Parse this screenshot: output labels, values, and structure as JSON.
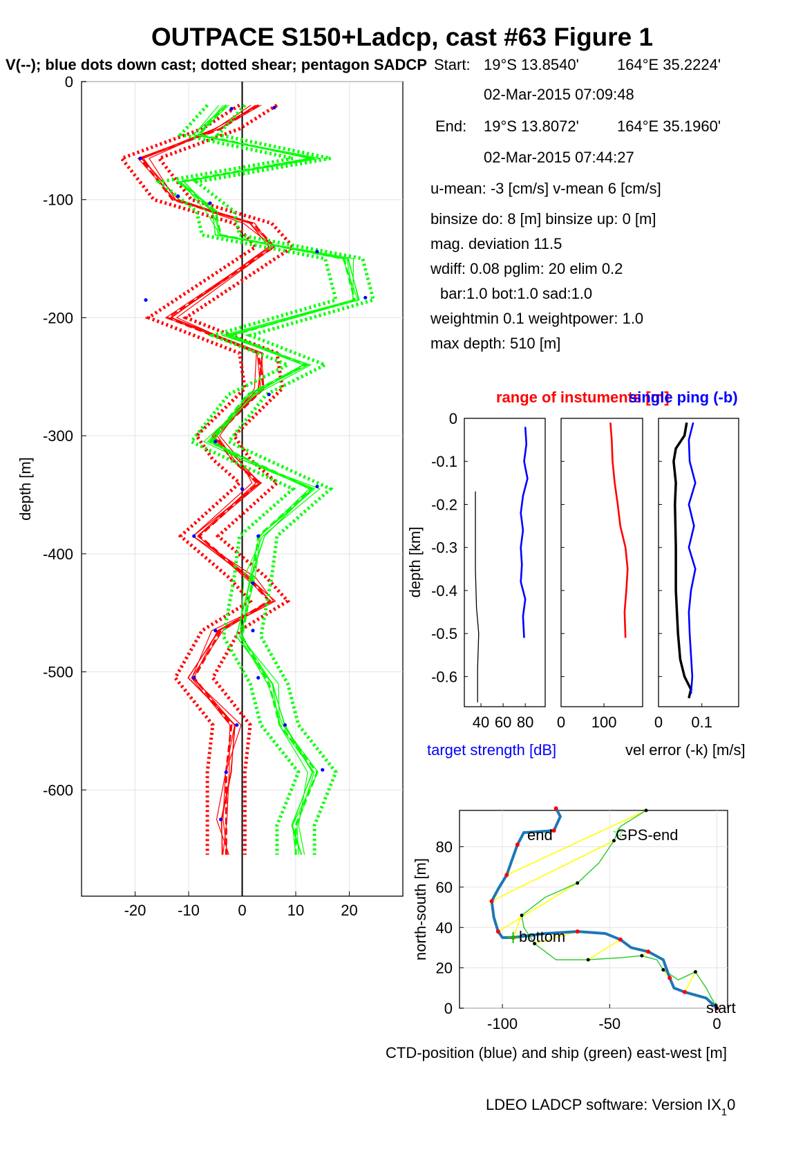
{
  "figure": {
    "title": "OUTPACE S150+Ladcp, cast #63  Figure 1",
    "subtitle": "V(--); blue dots down cast; dotted shear; pentagon SADCP",
    "footer": "LDEO LADCP software: Version IX",
    "footer_sub": "1",
    "footer_tail": "0"
  },
  "info": {
    "start_label": "Start:",
    "start_lat": "19°S 13.8540'",
    "start_lon": "164°E 35.2224'",
    "start_time": "02-Mar-2015 07:09:48",
    "end_label": "End:",
    "end_lat": "19°S 13.8072'",
    "end_lon": "164°E 35.1960'",
    "end_time": "02-Mar-2015 07:44:27",
    "line1": "u-mean:  -3 [cm/s]    v-mean   6 [cm/s]",
    "line2": "binsize do: 8 [m]  binsize up:  0 [m]",
    "line3": "mag. deviation 11.5",
    "line4": "wdiff: 0.08  pglim: 20  elim 0.2",
    "line5": "bar:1.0 bot:1.0 sad:1.0",
    "line6": "weightmin 0.1  weightpower: 1.0",
    "line7": "max depth: 510 [m]"
  },
  "mid": {
    "title_red": "range of instuments [m]",
    "title_blue": "single ping (-b)",
    "ylabel": "depth [km]",
    "xlabel_left": "target strength [dB]",
    "xlabel_right": "vel error (-k) [m/s]",
    "colors": {
      "red": "#ff0000",
      "blue": "#0000ff",
      "black": "#000000"
    }
  },
  "colors": {
    "u": "#ff0000",
    "v": "#00ff00",
    "dots": "#0000ff",
    "ctd": "#1f77b4",
    "ship": "#33cc33",
    "links": "#ffff00"
  },
  "chart_data": [
    {
      "type": "line",
      "name": "velocity_profiles",
      "ylabel": "depth [m]",
      "xlim": [
        -30,
        30
      ],
      "ylim": [
        -690,
        0
      ],
      "xticks": [
        -20,
        -10,
        0,
        10,
        20
      ],
      "yticks": [
        0,
        -100,
        -200,
        -300,
        -400,
        -500,
        -600
      ],
      "grid": true,
      "series": [
        {
          "component": "u",
          "color": "#ff0000",
          "depth": [
            -20,
            -40,
            -65,
            -100,
            -120,
            -140,
            -200,
            -230,
            -260,
            -300,
            -320,
            -340,
            -385,
            -420,
            -440,
            -465,
            -505,
            -545,
            -585,
            -625,
            -655
          ],
          "values": [
            3,
            -4,
            -19,
            -13,
            2,
            6,
            -14,
            3,
            4,
            -5,
            -2,
            3,
            -8,
            1,
            5,
            -4,
            -9,
            -2,
            -3,
            -3,
            -3
          ]
        },
        {
          "component": "v",
          "color": "#00ff00",
          "depth": [
            -20,
            -45,
            -65,
            -85,
            -110,
            -130,
            -150,
            -185,
            -215,
            -240,
            -265,
            -305,
            -320,
            -345,
            -385,
            -420,
            -470,
            -510,
            -545,
            -585,
            -630,
            -655
          ],
          "values": [
            -3,
            -8,
            13,
            -12,
            -5,
            -4,
            19,
            21,
            -2,
            12,
            1,
            -6,
            1,
            13,
            3,
            2,
            0,
            5,
            7,
            14,
            10,
            10
          ]
        }
      ],
      "shear_band_width": 3.5,
      "down_cast_dots_u": [
        [
          -19,
          -65
        ],
        [
          6,
          -22
        ],
        [
          -12,
          -97
        ],
        [
          -18,
          -185
        ],
        [
          -9,
          -385
        ],
        [
          -5,
          -465
        ],
        [
          -9,
          -505
        ],
        [
          -1,
          -545
        ],
        [
          -3,
          -585
        ],
        [
          -4,
          -625
        ],
        [
          2,
          -425
        ]
      ],
      "down_cast_dots_v": [
        [
          -2,
          -23
        ],
        [
          -6,
          -103
        ],
        [
          14,
          -144
        ],
        [
          23,
          -183
        ],
        [
          5,
          -265
        ],
        [
          -5,
          -305
        ],
        [
          0,
          -345
        ],
        [
          14,
          -343
        ],
        [
          3,
          -385
        ],
        [
          2,
          -465
        ],
        [
          3,
          -505
        ],
        [
          8,
          -545
        ],
        [
          15,
          -583
        ]
      ]
    },
    {
      "type": "line",
      "name": "target_strength",
      "xlabel": "target strength [dB]",
      "ylabel": "depth [km]",
      "xlim": [
        25,
        98
      ],
      "xticks": [
        40,
        60,
        80
      ],
      "ylim": [
        -0.67,
        0
      ],
      "yticks": [
        0,
        -0.1,
        -0.2,
        -0.3,
        -0.4,
        -0.5,
        -0.6
      ],
      "series": [
        {
          "name": "blue",
          "color": "#0000ff",
          "depth": [
            -0.02,
            -0.06,
            -0.1,
            -0.14,
            -0.18,
            -0.22,
            -0.26,
            -0.3,
            -0.34,
            -0.38,
            -0.42,
            -0.46,
            -0.51
          ],
          "values": [
            80,
            81,
            79,
            82,
            78,
            76,
            78,
            76,
            77,
            76,
            80,
            78,
            79
          ]
        },
        {
          "name": "black",
          "color": "#000000",
          "depth": [
            -0.17,
            -0.25,
            -0.35,
            -0.44,
            -0.5,
            -0.58,
            -0.66
          ],
          "values": [
            35,
            35,
            35,
            36,
            38,
            37,
            37
          ]
        }
      ]
    },
    {
      "type": "line",
      "name": "instrument_range",
      "xlim": [
        0,
        190
      ],
      "xticks": [
        0,
        100
      ],
      "ylim": [
        -0.67,
        0
      ],
      "series": [
        {
          "name": "red",
          "color": "#ff0000",
          "depth": [
            -0.01,
            -0.05,
            -0.1,
            -0.15,
            -0.2,
            -0.25,
            -0.3,
            -0.35,
            -0.4,
            -0.45,
            -0.51
          ],
          "values": [
            115,
            118,
            120,
            125,
            132,
            138,
            150,
            155,
            152,
            148,
            150
          ]
        }
      ]
    },
    {
      "type": "line",
      "name": "velocity_error",
      "xlabel": "vel error (-k) [m/s]",
      "xlim": [
        0,
        0.185
      ],
      "xticks": [
        0,
        0.1
      ],
      "ylim": [
        -0.67,
        0
      ],
      "series": [
        {
          "name": "black",
          "color": "#000000",
          "depth": [
            -0.01,
            -0.04,
            -0.07,
            -0.1,
            -0.15,
            -0.2,
            -0.3,
            -0.4,
            -0.5,
            -0.56,
            -0.6,
            -0.63,
            -0.65
          ],
          "values": [
            0.065,
            0.06,
            0.04,
            0.035,
            0.04,
            0.038,
            0.04,
            0.04,
            0.045,
            0.05,
            0.06,
            0.075,
            0.07
          ]
        },
        {
          "name": "blue",
          "color": "#0000ff",
          "depth": [
            -0.01,
            -0.05,
            -0.1,
            -0.15,
            -0.2,
            -0.25,
            -0.3,
            -0.35,
            -0.4,
            -0.45,
            -0.5,
            -0.55,
            -0.6,
            -0.64
          ],
          "values": [
            0.08,
            0.07,
            0.072,
            0.085,
            0.07,
            0.082,
            0.07,
            0.085,
            0.075,
            0.07,
            0.072,
            0.075,
            0.078,
            0.075
          ]
        }
      ]
    },
    {
      "type": "line",
      "name": "ctd_ship_track",
      "xlabel": "CTD-position (blue) and ship (green) east-west [m]",
      "ylabel": "north-south [m]",
      "xlim": [
        -120,
        5
      ],
      "xticks": [
        -100,
        -50,
        0
      ],
      "ylim": [
        0,
        98
      ],
      "yticks": [
        0,
        20,
        40,
        60,
        80
      ],
      "grid": true,
      "ctd": [
        [
          0,
          0
        ],
        [
          -5,
          5
        ],
        [
          -15,
          8
        ],
        [
          -20,
          10
        ],
        [
          -22,
          15
        ],
        [
          -25,
          24
        ],
        [
          -32,
          28
        ],
        [
          -40,
          30
        ],
        [
          -45,
          34
        ],
        [
          -52,
          37
        ],
        [
          -65,
          38
        ],
        [
          -80,
          37
        ],
        [
          -95,
          35
        ],
        [
          -100,
          35
        ],
        [
          -102,
          38
        ],
        [
          -104,
          45
        ],
        [
          -105,
          53
        ],
        [
          -102,
          59
        ],
        [
          -98,
          66
        ],
        [
          -95,
          75
        ],
        [
          -93,
          81
        ],
        [
          -90,
          87
        ],
        [
          -76,
          88
        ],
        [
          -73,
          95
        ],
        [
          -75,
          99
        ]
      ],
      "ship": [
        [
          0,
          0
        ],
        [
          -5,
          10
        ],
        [
          -10,
          18
        ],
        [
          -18,
          14
        ],
        [
          -25,
          19
        ],
        [
          -28,
          24
        ],
        [
          -35,
          26
        ],
        [
          -45,
          25
        ],
        [
          -60,
          24
        ],
        [
          -75,
          24
        ],
        [
          -85,
          32
        ],
        [
          -90,
          40
        ],
        [
          -91,
          46
        ],
        [
          -80,
          55
        ],
        [
          -65,
          62
        ],
        [
          -55,
          72
        ],
        [
          -48,
          83
        ],
        [
          -45,
          90
        ],
        [
          -33,
          98
        ]
      ],
      "labels": {
        "end": "end",
        "gps_end": "GPS-end",
        "bottom": "bottom",
        "start": "start"
      }
    }
  ]
}
